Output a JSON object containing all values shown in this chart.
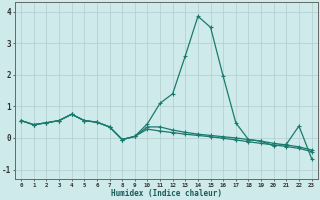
{
  "xlabel": "Humidex (Indice chaleur)",
  "ylabel": "",
  "x": [
    0,
    1,
    2,
    3,
    4,
    5,
    6,
    7,
    8,
    9,
    10,
    11,
    12,
    13,
    14,
    15,
    16,
    17,
    18,
    19,
    20,
    21,
    22,
    23
  ],
  "line1": [
    0.55,
    0.42,
    0.48,
    0.55,
    0.75,
    0.55,
    0.5,
    0.35,
    -0.05,
    0.05,
    0.45,
    1.1,
    1.4,
    2.6,
    3.85,
    3.5,
    1.95,
    0.48,
    -0.05,
    -0.1,
    -0.25,
    -0.2,
    0.38,
    -0.65
  ],
  "line2": [
    0.55,
    0.42,
    0.48,
    0.55,
    0.75,
    0.55,
    0.5,
    0.35,
    -0.05,
    0.05,
    0.35,
    0.35,
    0.25,
    0.18,
    0.12,
    0.08,
    0.04,
    0.0,
    -0.05,
    -0.1,
    -0.17,
    -0.22,
    -0.28,
    -0.38
  ],
  "line3": [
    0.55,
    0.42,
    0.48,
    0.55,
    0.75,
    0.55,
    0.5,
    0.35,
    -0.05,
    0.05,
    0.28,
    0.22,
    0.17,
    0.12,
    0.08,
    0.04,
    -0.01,
    -0.06,
    -0.12,
    -0.17,
    -0.22,
    -0.27,
    -0.33,
    -0.43
  ],
  "line_color": "#1a7a6e",
  "bg_color": "#ceeaea",
  "grid_color": "#b0cccc",
  "ylim": [
    -1.3,
    4.3
  ],
  "yticks": [
    -1,
    0,
    1,
    2,
    3,
    4
  ]
}
